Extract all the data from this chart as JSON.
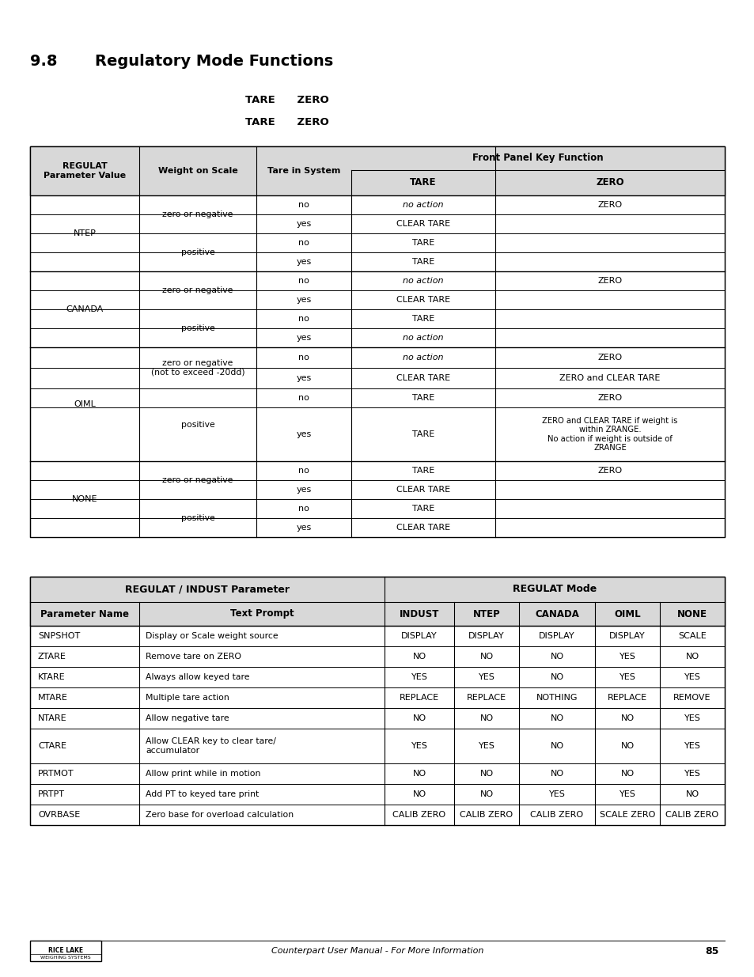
{
  "title_num": "9.8",
  "title_text": "Regulatory Mode Functions",
  "subtitle1": "TARE      ZERO",
  "subtitle2": "TARE      ZERO",
  "bg_color": "#ffffff",
  "header_bg": "#d8d8d8",
  "footer_text": "Counterpart User Manual - For More Information",
  "footer_page": "85",
  "t1_front_panel": "Front Panel Key Function",
  "t1_headers": [
    "REGULAT\nParameter Value",
    "Weight on Scale",
    "Tare in System",
    "TARE",
    "ZERO"
  ],
  "t1_regulat_groups": [
    {
      "label": "NTEP",
      "rows": 4
    },
    {
      "label": "CANADA",
      "rows": 4
    },
    {
      "label": "OIML",
      "rows": 4
    },
    {
      "label": "NONE",
      "rows": 4
    }
  ],
  "t1_weight_groups": [
    [
      {
        "label": "zero or negative",
        "rows": 2
      },
      {
        "label": "positive",
        "rows": 2
      }
    ],
    [
      {
        "label": "zero or negative",
        "rows": 2
      },
      {
        "label": "positive",
        "rows": 2
      }
    ],
    [
      {
        "label": "zero or negative\n(not to exceed -20dd)",
        "rows": 2
      },
      {
        "label": "positive",
        "rows": 2
      }
    ],
    [
      {
        "label": "zero or negative",
        "rows": 2
      },
      {
        "label": "positive",
        "rows": 2
      }
    ]
  ],
  "t1_data": [
    {
      "tare_yn": "no",
      "tare_col": "no action",
      "tare_italic": true,
      "zero_col": "ZERO",
      "zero_italic": false
    },
    {
      "tare_yn": "yes",
      "tare_col": "CLEAR TARE",
      "tare_italic": false,
      "zero_col": "",
      "zero_italic": false
    },
    {
      "tare_yn": "no",
      "tare_col": "TARE",
      "tare_italic": false,
      "zero_col": "",
      "zero_italic": false
    },
    {
      "tare_yn": "yes",
      "tare_col": "TARE",
      "tare_italic": false,
      "zero_col": "",
      "zero_italic": false
    },
    {
      "tare_yn": "no",
      "tare_col": "no action",
      "tare_italic": true,
      "zero_col": "ZERO",
      "zero_italic": false
    },
    {
      "tare_yn": "yes",
      "tare_col": "CLEAR TARE",
      "tare_italic": false,
      "zero_col": "",
      "zero_italic": false
    },
    {
      "tare_yn": "no",
      "tare_col": "TARE",
      "tare_italic": false,
      "zero_col": "",
      "zero_italic": false
    },
    {
      "tare_yn": "yes",
      "tare_col": "no action",
      "tare_italic": true,
      "zero_col": "",
      "zero_italic": false
    },
    {
      "tare_yn": "no",
      "tare_col": "no action",
      "tare_italic": true,
      "zero_col": "ZERO",
      "zero_italic": false
    },
    {
      "tare_yn": "yes",
      "tare_col": "CLEAR TARE",
      "tare_italic": false,
      "zero_col": "ZERO and CLEAR TARE",
      "zero_italic": false,
      "zero_mixed": true
    },
    {
      "tare_yn": "no",
      "tare_col": "TARE",
      "tare_italic": false,
      "zero_col": "ZERO",
      "zero_italic": false
    },
    {
      "tare_yn": "yes",
      "tare_col": "TARE",
      "tare_italic": false,
      "zero_col": "ZERO and CLEAR TARE if weight is\nwithin ZRANGE.\nNo action if weight is outside of\nZRANGE",
      "zero_italic": false,
      "zero_mixed2": true
    },
    {
      "tare_yn": "no",
      "tare_col": "TARE",
      "tare_italic": false,
      "zero_col": "ZERO",
      "zero_italic": false
    },
    {
      "tare_yn": "yes",
      "tare_col": "CLEAR TARE",
      "tare_italic": false,
      "zero_col": "",
      "zero_italic": false
    },
    {
      "tare_yn": "no",
      "tare_col": "TARE",
      "tare_italic": false,
      "zero_col": "",
      "zero_italic": false
    },
    {
      "tare_yn": "yes",
      "tare_col": "CLEAR TARE",
      "tare_italic": false,
      "zero_col": "",
      "zero_italic": false
    }
  ],
  "t2_col1_header": "REGULAT / INDUST Parameter",
  "t2_col2_header": "REGULAT Mode",
  "t2_subheaders": [
    "Parameter Name",
    "Text Prompt",
    "INDUST",
    "NTEP",
    "CANADA",
    "OIML",
    "NONE"
  ],
  "t2_rows": [
    [
      "SNPSHOT",
      "Display or Scale weight source",
      "DISPLAY",
      "DISPLAY",
      "DISPLAY",
      "DISPLAY",
      "SCALE"
    ],
    [
      "ZTARE",
      "Remove tare on ZERO",
      "NO",
      "NO",
      "NO",
      "YES",
      "NO"
    ],
    [
      "KTARE",
      "Always allow keyed tare",
      "YES",
      "YES",
      "NO",
      "YES",
      "YES"
    ],
    [
      "MTARE",
      "Multiple tare action",
      "REPLACE",
      "REPLACE",
      "NOTHING",
      "REPLACE",
      "REMOVE"
    ],
    [
      "NTARE",
      "Allow negative tare",
      "NO",
      "NO",
      "NO",
      "NO",
      "YES"
    ],
    [
      "CTARE",
      "Allow CLEAR key to clear tare/\naccumulator",
      "YES",
      "YES",
      "NO",
      "NO",
      "YES"
    ],
    [
      "PRTMOT",
      "Allow print while in motion",
      "NO",
      "NO",
      "NO",
      "NO",
      "YES"
    ],
    [
      "PRTPT",
      "Add PT to keyed tare print",
      "NO",
      "NO",
      "YES",
      "YES",
      "NO"
    ],
    [
      "OVRBASE",
      "Zero base for overload calculation",
      "CALIB ZERO",
      "CALIB ZERO",
      "CALIB ZERO",
      "SCALE ZERO",
      "CALIB ZERO"
    ]
  ]
}
